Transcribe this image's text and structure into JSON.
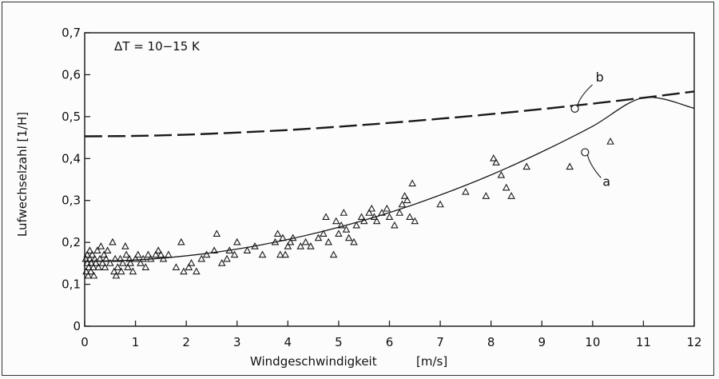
{
  "chart_data": {
    "type": "scatter",
    "title": "",
    "annotation": "ΔT = 10−15 K",
    "xlabel": "Windgeschwindigkeit",
    "xunit": "[m/s]",
    "ylabel": "Lufwechselzahl [1/H]",
    "xlim": [
      0,
      12
    ],
    "ylim": [
      0,
      0.7
    ],
    "x_ticks": [
      "0",
      "1",
      "2",
      "3",
      "4",
      "5",
      "6",
      "7",
      "8",
      "9",
      "10",
      "11",
      "12"
    ],
    "y_ticks": [
      "0",
      "0,1",
      "0,2",
      "0,3",
      "0,4",
      "0,5",
      "0,6",
      "0,7"
    ],
    "grid": false,
    "series": [
      {
        "name": "",
        "style": "measured points (triangles)",
        "points": [
          [
            0.02,
            0.16
          ],
          [
            0.03,
            0.13
          ],
          [
            0.05,
            0.15
          ],
          [
            0.05,
            0.17
          ],
          [
            0.07,
            0.12
          ],
          [
            0.08,
            0.14
          ],
          [
            0.1,
            0.16
          ],
          [
            0.1,
            0.18
          ],
          [
            0.12,
            0.13
          ],
          [
            0.13,
            0.15
          ],
          [
            0.15,
            0.17
          ],
          [
            0.17,
            0.14
          ],
          [
            0.18,
            0.12
          ],
          [
            0.2,
            0.16
          ],
          [
            0.22,
            0.15
          ],
          [
            0.25,
            0.18
          ],
          [
            0.27,
            0.14
          ],
          [
            0.3,
            0.16
          ],
          [
            0.32,
            0.19
          ],
          [
            0.35,
            0.15
          ],
          [
            0.38,
            0.17
          ],
          [
            0.4,
            0.14
          ],
          [
            0.42,
            0.16
          ],
          [
            0.45,
            0.18
          ],
          [
            0.5,
            0.15
          ],
          [
            0.55,
            0.2
          ],
          [
            0.58,
            0.13
          ],
          [
            0.6,
            0.16
          ],
          [
            0.62,
            0.12
          ],
          [
            0.65,
            0.14
          ],
          [
            0.7,
            0.16
          ],
          [
            0.72,
            0.13
          ],
          [
            0.75,
            0.15
          ],
          [
            0.8,
            0.19
          ],
          [
            0.82,
            0.17
          ],
          [
            0.85,
            0.14
          ],
          [
            0.88,
            0.16
          ],
          [
            0.9,
            0.15
          ],
          [
            0.95,
            0.13
          ],
          [
            1.0,
            0.16
          ],
          [
            1.05,
            0.17
          ],
          [
            1.1,
            0.15
          ],
          [
            1.15,
            0.16
          ],
          [
            1.2,
            0.14
          ],
          [
            1.25,
            0.17
          ],
          [
            1.3,
            0.16
          ],
          [
            1.4,
            0.17
          ],
          [
            1.45,
            0.18
          ],
          [
            1.5,
            0.17
          ],
          [
            1.55,
            0.16
          ],
          [
            1.65,
            0.17
          ],
          [
            1.9,
            0.2
          ],
          [
            1.8,
            0.14
          ],
          [
            1.95,
            0.13
          ],
          [
            2.05,
            0.14
          ],
          [
            2.1,
            0.15
          ],
          [
            2.2,
            0.13
          ],
          [
            2.3,
            0.16
          ],
          [
            2.4,
            0.17
          ],
          [
            2.55,
            0.18
          ],
          [
            2.6,
            0.22
          ],
          [
            2.7,
            0.15
          ],
          [
            2.8,
            0.16
          ],
          [
            2.85,
            0.18
          ],
          [
            2.95,
            0.17
          ],
          [
            3.0,
            0.2
          ],
          [
            3.2,
            0.18
          ],
          [
            3.35,
            0.19
          ],
          [
            3.5,
            0.17
          ],
          [
            3.75,
            0.2
          ],
          [
            3.8,
            0.22
          ],
          [
            3.85,
            0.17
          ],
          [
            3.9,
            0.21
          ],
          [
            3.95,
            0.17
          ],
          [
            4.0,
            0.19
          ],
          [
            4.05,
            0.2
          ],
          [
            4.1,
            0.21
          ],
          [
            4.25,
            0.19
          ],
          [
            4.35,
            0.2
          ],
          [
            4.45,
            0.19
          ],
          [
            4.6,
            0.21
          ],
          [
            4.7,
            0.22
          ],
          [
            4.75,
            0.26
          ],
          [
            4.8,
            0.2
          ],
          [
            4.9,
            0.17
          ],
          [
            4.95,
            0.25
          ],
          [
            5.0,
            0.22
          ],
          [
            5.05,
            0.24
          ],
          [
            5.1,
            0.27
          ],
          [
            5.15,
            0.23
          ],
          [
            5.2,
            0.21
          ],
          [
            5.3,
            0.2
          ],
          [
            5.35,
            0.24
          ],
          [
            5.45,
            0.26
          ],
          [
            5.5,
            0.25
          ],
          [
            5.6,
            0.27
          ],
          [
            5.65,
            0.28
          ],
          [
            5.7,
            0.26
          ],
          [
            5.75,
            0.25
          ],
          [
            5.85,
            0.27
          ],
          [
            5.95,
            0.28
          ],
          [
            6.0,
            0.26
          ],
          [
            6.1,
            0.24
          ],
          [
            6.2,
            0.27
          ],
          [
            6.25,
            0.29
          ],
          [
            6.3,
            0.31
          ],
          [
            6.35,
            0.3
          ],
          [
            6.4,
            0.26
          ],
          [
            6.45,
            0.34
          ],
          [
            6.5,
            0.25
          ],
          [
            7.0,
            0.29
          ],
          [
            7.5,
            0.32
          ],
          [
            7.9,
            0.31
          ],
          [
            8.05,
            0.4
          ],
          [
            8.1,
            0.39
          ],
          [
            8.2,
            0.36
          ],
          [
            8.3,
            0.33
          ],
          [
            8.4,
            0.31
          ],
          [
            8.7,
            0.38
          ],
          [
            9.55,
            0.38
          ],
          [
            10.35,
            0.44
          ]
        ]
      },
      {
        "name": "a",
        "style": "solid line",
        "x": [
          0,
          1,
          2,
          3,
          4,
          5,
          6,
          7,
          8,
          9,
          10,
          11,
          12
        ],
        "y": [
          0.155,
          0.158,
          0.168,
          0.184,
          0.207,
          0.236,
          0.271,
          0.313,
          0.361,
          0.416,
          0.477,
          0.545,
          0.52
        ]
      },
      {
        "name": "b",
        "style": "dashed line",
        "x": [
          0,
          1,
          2,
          3,
          4,
          5,
          6,
          7,
          8,
          9,
          10,
          11,
          12
        ],
        "y": [
          0.453,
          0.454,
          0.457,
          0.462,
          0.468,
          0.476,
          0.485,
          0.495,
          0.506,
          0.518,
          0.531,
          0.545,
          0.56
        ]
      }
    ],
    "labels": [
      {
        "text": "a",
        "marker_x": 9.85,
        "marker_y": 0.415
      },
      {
        "text": "b",
        "marker_x": 9.65,
        "marker_y": 0.519
      }
    ]
  }
}
